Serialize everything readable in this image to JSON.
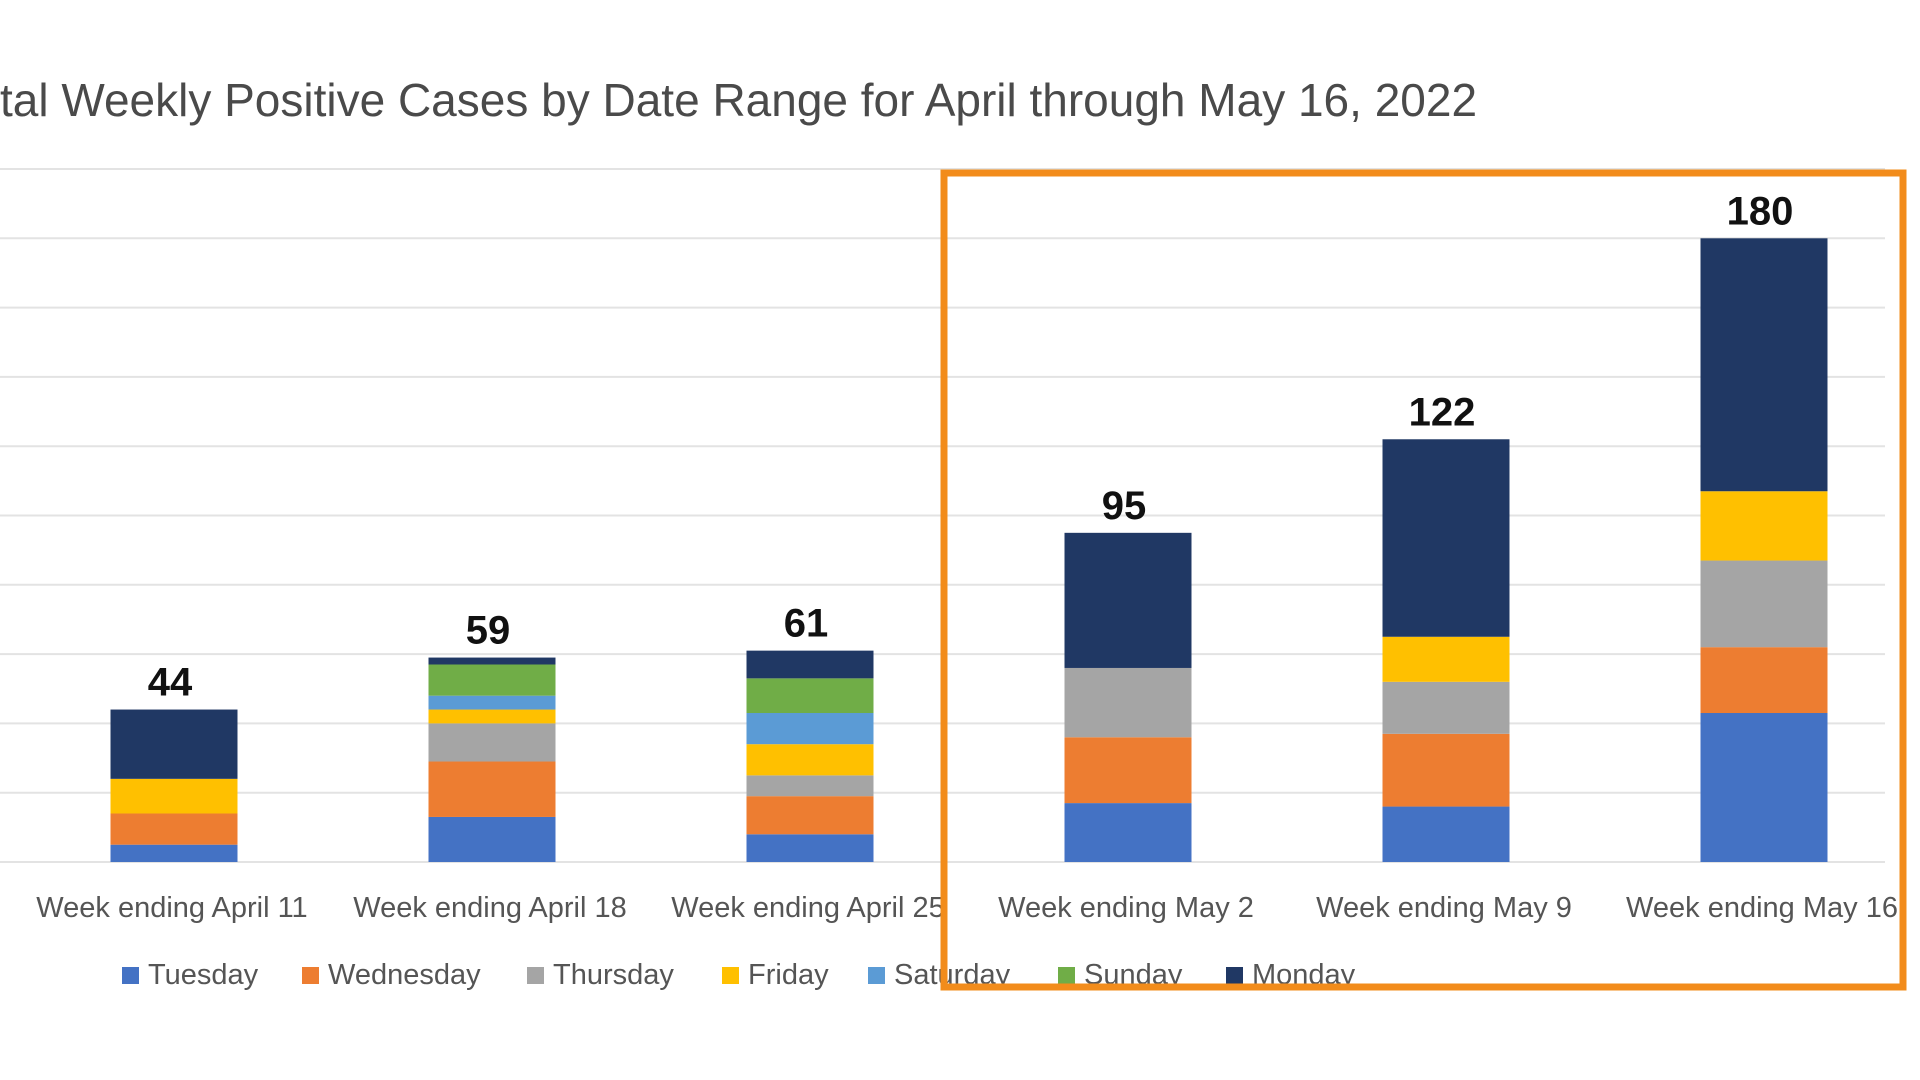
{
  "chart_data": {
    "type": "bar",
    "stacked": true,
    "title": "tal Weekly Positive Cases by Date Range for April through May 16, 2022",
    "categories": [
      "Week ending April 11",
      "Week ending April 18",
      "Week ending April 25",
      "Week ending May 2",
      "Week ending May 9",
      "Week ending May 16"
    ],
    "totals": [
      44,
      59,
      61,
      95,
      122,
      180
    ],
    "ylim": [
      0,
      200
    ],
    "grid": true,
    "legend_position": "bottom",
    "series": [
      {
        "name": "Tuesday",
        "color": "#4472C4",
        "values": [
          5,
          13,
          8,
          17,
          16,
          43
        ]
      },
      {
        "name": "Wednesday",
        "color": "#ED7D31",
        "values": [
          9,
          16,
          11,
          19,
          21,
          19
        ]
      },
      {
        "name": "Thursday",
        "color": "#A5A5A5",
        "values": [
          0,
          11,
          6,
          20,
          15,
          25
        ]
      },
      {
        "name": "Friday",
        "color": "#FFC000",
        "values": [
          10,
          4,
          9,
          0,
          13,
          20
        ]
      },
      {
        "name": "Saturday",
        "color": "#5B9BD5",
        "values": [
          0,
          4,
          9,
          0,
          0,
          0
        ]
      },
      {
        "name": "Sunday",
        "color": "#70AD47",
        "values": [
          0,
          9,
          10,
          0,
          0,
          0
        ]
      },
      {
        "name": "Monday",
        "color": "#203864",
        "values": [
          20,
          2,
          8,
          39,
          57,
          73
        ]
      }
    ]
  },
  "highlight": {
    "color": "#F28C1B",
    "first_category": 3,
    "last_category": 5
  }
}
